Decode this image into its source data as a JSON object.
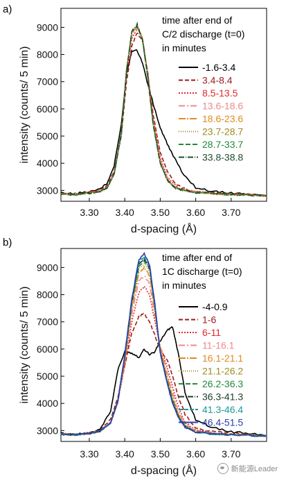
{
  "watermark": {
    "text": "新能源Leader",
    "icon": "wechat-icon"
  },
  "chart_data": [
    {
      "panel": "a)",
      "type": "line",
      "xlabel": "d-spacing (Å)",
      "ylabel": "intensity (counts/ 5 min)",
      "xlim": [
        3.22,
        3.8
      ],
      "ylim": [
        2600,
        9700
      ],
      "xticks": [
        "3.30",
        "3.40",
        "3.50",
        "3.60",
        "3.70"
      ],
      "xtick_values": [
        3.3,
        3.4,
        3.5,
        3.6,
        3.7
      ],
      "yticks": [
        "3000",
        "4000",
        "5000",
        "6000",
        "7000",
        "8000",
        "9000"
      ],
      "ytick_values": [
        3000,
        4000,
        5000,
        6000,
        7000,
        8000,
        9000
      ],
      "legend_title": [
        "time after end of",
        "C/2 discharge (t=0)",
        "in minutes"
      ],
      "legend_position": "right",
      "x": [
        3.22,
        3.26,
        3.3,
        3.33,
        3.35,
        3.37,
        3.39,
        3.405,
        3.42,
        3.435,
        3.45,
        3.465,
        3.48,
        3.5,
        3.52,
        3.54,
        3.56,
        3.6,
        3.65,
        3.7,
        3.75,
        3.8
      ],
      "series": [
        {
          "name": "-1.6-3.4",
          "color": "#000000",
          "dash": "solid",
          "values": [
            2900,
            2880,
            2960,
            3060,
            3250,
            3900,
            5400,
            7300,
            8150,
            8150,
            7700,
            6900,
            6200,
            5300,
            4700,
            4200,
            3700,
            3100,
            2960,
            2900,
            2850,
            2800
          ]
        },
        {
          "name": "3.4-8.4",
          "color": "#9b1a1a",
          "dash": "6,3",
          "values": [
            2900,
            2860,
            2930,
            3000,
            3150,
            3700,
            5000,
            7000,
            8300,
            8800,
            8500,
            7300,
            5800,
            4400,
            3700,
            3300,
            3100,
            2950,
            2900,
            2880,
            2850,
            2800
          ]
        },
        {
          "name": "8.5-13.5",
          "color": "#e0272b",
          "dash": "2,2",
          "values": [
            2880,
            2850,
            2920,
            2990,
            3120,
            3650,
            5050,
            7300,
            8600,
            8950,
            8600,
            7300,
            5650,
            4200,
            3500,
            3200,
            3050,
            2950,
            2880,
            2860,
            2840,
            2800
          ]
        },
        {
          "name": "13.6-18.6",
          "color": "#ef8a8a",
          "dash": "9,3,2,3",
          "values": [
            2880,
            2860,
            2910,
            2980,
            3120,
            3620,
            5100,
            7400,
            8700,
            9000,
            8600,
            7250,
            5550,
            4100,
            3450,
            3150,
            3030,
            2940,
            2880,
            2850,
            2840,
            2800
          ]
        },
        {
          "name": "18.6-23.6",
          "color": "#e08a1e",
          "dash": "10,2,2,2",
          "values": [
            2870,
            2850,
            2900,
            2970,
            3100,
            3600,
            5100,
            7450,
            8800,
            9050,
            8600,
            7200,
            5500,
            4050,
            3400,
            3120,
            3020,
            2930,
            2880,
            2850,
            2830,
            2800
          ]
        },
        {
          "name": "23.7-28.7",
          "color": "#9c8b1f",
          "dash": "1,2",
          "values": [
            2870,
            2850,
            2900,
            2970,
            3100,
            3600,
            5100,
            7450,
            8850,
            9050,
            8550,
            7150,
            5450,
            4000,
            3380,
            3110,
            3010,
            2930,
            2880,
            2850,
            2830,
            2800
          ]
        },
        {
          "name": "28.7-33.7",
          "color": "#1f8a3a",
          "dash": "7,3",
          "values": [
            2870,
            2850,
            2900,
            2970,
            3100,
            3600,
            5050,
            7400,
            8850,
            9050,
            8550,
            7150,
            5450,
            4000,
            3380,
            3110,
            3010,
            2930,
            2880,
            2850,
            2830,
            2800
          ]
        },
        {
          "name": "33.8-38.8",
          "color": "#1d4d2a",
          "dash": "8,2,1,2",
          "values": [
            2870,
            2850,
            2900,
            2970,
            3100,
            3600,
            5050,
            7400,
            8850,
            9100,
            8550,
            7150,
            5450,
            4000,
            3380,
            3110,
            3010,
            2930,
            2880,
            2850,
            2830,
            2800
          ]
        }
      ]
    },
    {
      "panel": "b)",
      "type": "line",
      "xlabel": "d-spacing (Å)",
      "ylabel": "intensity (counts/ 5 min)",
      "xlim": [
        3.22,
        3.8
      ],
      "ylim": [
        2600,
        9700
      ],
      "xticks": [
        "3.30",
        "3.40",
        "3.50",
        "3.60",
        "3.70"
      ],
      "xtick_values": [
        3.3,
        3.4,
        3.5,
        3.6,
        3.7
      ],
      "yticks": [
        "3000",
        "4000",
        "5000",
        "6000",
        "7000",
        "8000",
        "9000"
      ],
      "ytick_values": [
        3000,
        4000,
        5000,
        6000,
        7000,
        8000,
        9000
      ],
      "legend_title": [
        "time after end of",
        "1C discharge (t=0)",
        "in minutes"
      ],
      "legend_position": "right",
      "x": [
        3.22,
        3.26,
        3.3,
        3.33,
        3.36,
        3.38,
        3.4,
        3.42,
        3.44,
        3.455,
        3.47,
        3.485,
        3.5,
        3.52,
        3.535,
        3.55,
        3.57,
        3.6,
        3.65,
        3.7,
        3.75,
        3.8
      ],
      "series": [
        {
          "name": "-4-0.9",
          "color": "#000000",
          "dash": "solid",
          "values": [
            2900,
            2850,
            2920,
            3050,
            3700,
            5200,
            5900,
            5850,
            5700,
            6000,
            5800,
            5900,
            6300,
            6700,
            6800,
            5900,
            4400,
            3400,
            3100,
            2950,
            2900,
            2800
          ]
        },
        {
          "name": "1-6",
          "color": "#9b1a1a",
          "dash": "6,3",
          "values": [
            2900,
            2850,
            2900,
            3000,
            3400,
            4200,
            5400,
            6600,
            7200,
            7300,
            7000,
            6500,
            6000,
            5600,
            5000,
            4300,
            3600,
            3100,
            2950,
            2900,
            2850,
            2800
          ]
        },
        {
          "name": "6-11",
          "color": "#e0272b",
          "dash": "2,2",
          "values": [
            2880,
            2850,
            2900,
            2980,
            3300,
            4000,
            5400,
            7000,
            8100,
            8300,
            8000,
            7000,
            6100,
            5300,
            4600,
            3900,
            3300,
            3000,
            2900,
            2870,
            2840,
            2800
          ]
        },
        {
          "name": "11-16.1",
          "color": "#ef8a8a",
          "dash": "9,3,2,3",
          "values": [
            2880,
            2850,
            2900,
            2980,
            3300,
            4000,
            5500,
            7300,
            8500,
            8700,
            8400,
            7200,
            6100,
            5100,
            4400,
            3750,
            3250,
            2980,
            2890,
            2860,
            2840,
            2800
          ]
        },
        {
          "name": "16.1-21.1",
          "color": "#e08a1e",
          "dash": "10,2,2,2",
          "values": [
            2870,
            2850,
            2900,
            2980,
            3300,
            4050,
            5600,
            7500,
            8800,
            9000,
            8700,
            7400,
            6000,
            4950,
            4250,
            3650,
            3200,
            2970,
            2880,
            2860,
            2830,
            2800
          ]
        },
        {
          "name": "21.1-26.2",
          "color": "#9c8b1f",
          "dash": "1,2",
          "values": [
            2870,
            2850,
            2900,
            2980,
            3300,
            4050,
            5650,
            7600,
            8950,
            9150,
            8850,
            7500,
            5950,
            4850,
            4150,
            3600,
            3180,
            2960,
            2880,
            2850,
            2830,
            2800
          ]
        },
        {
          "name": "26.2-36.3",
          "color": "#1f8a3a",
          "dash": "7,3",
          "values": [
            2870,
            2850,
            2900,
            2980,
            3300,
            4050,
            5700,
            7700,
            9050,
            9250,
            8950,
            7550,
            5900,
            4800,
            4100,
            3550,
            3150,
            2950,
            2870,
            2850,
            2830,
            2800
          ]
        },
        {
          "name": "36.3-41.3",
          "color": "#1d3a2a",
          "dash": "8,2,1,2",
          "values": [
            2870,
            2850,
            2900,
            2980,
            3300,
            4050,
            5700,
            7750,
            9100,
            9300,
            9000,
            7600,
            5900,
            4780,
            4080,
            3540,
            3140,
            2950,
            2870,
            2850,
            2830,
            2800
          ]
        },
        {
          "name": "41.3-46.4",
          "color": "#1b9a9a",
          "dash": "6,2",
          "values": [
            2870,
            2850,
            2900,
            2980,
            3300,
            4050,
            5750,
            7800,
            9200,
            9400,
            9050,
            7600,
            5850,
            4750,
            4050,
            3520,
            3130,
            2950,
            2870,
            2850,
            2830,
            2800
          ]
        },
        {
          "name": "46.4-51.5",
          "color": "#2a3fb0",
          "dash": "solid",
          "values": [
            2870,
            2850,
            2900,
            2980,
            3300,
            4050,
            5800,
            7850,
            9300,
            9500,
            9100,
            7650,
            5850,
            4700,
            4000,
            3500,
            3120,
            2950,
            2870,
            2850,
            2830,
            2800
          ]
        }
      ]
    }
  ]
}
